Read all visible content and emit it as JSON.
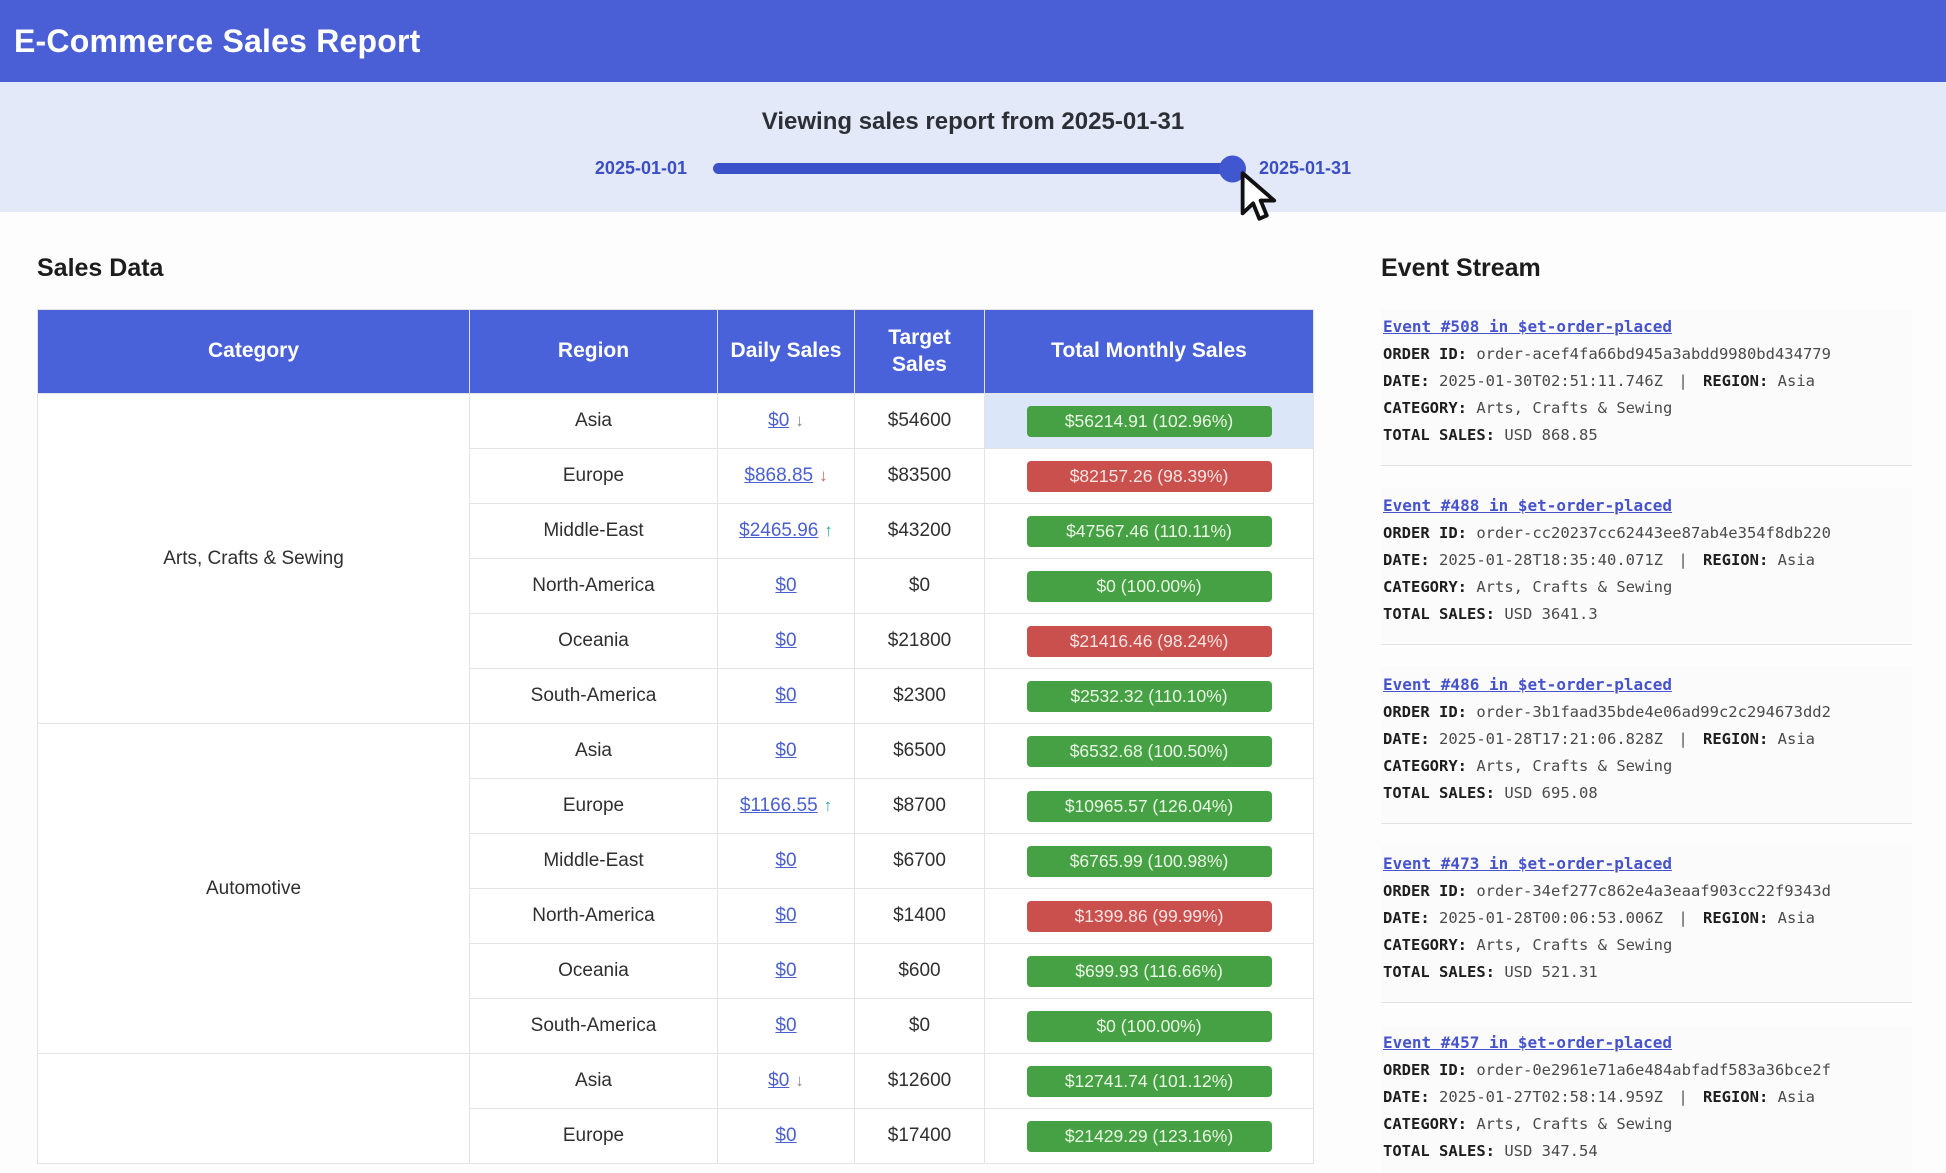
{
  "header": {
    "title": "E-Commerce Sales Report"
  },
  "slider": {
    "title": "Viewing sales report from 2025-01-31",
    "min_label": "2025-01-01",
    "max_label": "2025-01-31",
    "value": "2025-01-31"
  },
  "sales": {
    "title": "Sales Data",
    "columns": [
      "Category",
      "Region",
      "Daily Sales",
      "Target Sales",
      "Total Monthly Sales"
    ],
    "groups": [
      {
        "label": "Arts, Crafts & Sewing",
        "span": 6
      },
      {
        "label": "Automotive",
        "span": 6
      },
      {
        "label": "",
        "span": 2
      }
    ],
    "rows": [
      {
        "region": "Asia",
        "daily": "$0",
        "arrow": "down",
        "arrow_color": "gray",
        "target": "$54600",
        "total": "$56214.91 (102.96%)",
        "status": "green",
        "highlight": true
      },
      {
        "region": "Europe",
        "daily": "$868.85",
        "arrow": "down",
        "arrow_color": "red",
        "target": "$83500",
        "total": "$82157.26 (98.39%)",
        "status": "red"
      },
      {
        "region": "Middle-East",
        "daily": "$2465.96",
        "arrow": "up",
        "arrow_color": "teal",
        "target": "$43200",
        "total": "$47567.46 (110.11%)",
        "status": "green"
      },
      {
        "region": "North-America",
        "daily": "$0",
        "target": "$0",
        "total": "$0 (100.00%)",
        "status": "green"
      },
      {
        "region": "Oceania",
        "daily": "$0",
        "target": "$21800",
        "total": "$21416.46 (98.24%)",
        "status": "red"
      },
      {
        "region": "South-America",
        "daily": "$0",
        "target": "$2300",
        "total": "$2532.32 (110.10%)",
        "status": "green"
      },
      {
        "region": "Asia",
        "daily": "$0",
        "target": "$6500",
        "total": "$6532.68 (100.50%)",
        "status": "green"
      },
      {
        "region": "Europe",
        "daily": "$1166.55",
        "arrow": "up",
        "arrow_color": "teal",
        "target": "$8700",
        "total": "$10965.57 (126.04%)",
        "status": "green"
      },
      {
        "region": "Middle-East",
        "daily": "$0",
        "target": "$6700",
        "total": "$6765.99 (100.98%)",
        "status": "green"
      },
      {
        "region": "North-America",
        "daily": "$0",
        "target": "$1400",
        "total": "$1399.86 (99.99%)",
        "status": "red"
      },
      {
        "region": "Oceania",
        "daily": "$0",
        "target": "$600",
        "total": "$699.93 (116.66%)",
        "status": "green"
      },
      {
        "region": "South-America",
        "daily": "$0",
        "target": "$0",
        "total": "$0 (100.00%)",
        "status": "green"
      },
      {
        "region": "Asia",
        "daily": "$0",
        "arrow": "down",
        "arrow_color": "gray",
        "target": "$12600",
        "total": "$12741.74 (101.12%)",
        "status": "green"
      },
      {
        "region": "Europe",
        "daily": "$0",
        "target": "$17400",
        "total": "$21429.29 (123.16%)",
        "status": "green"
      }
    ]
  },
  "events": {
    "title": "Event Stream",
    "labels": {
      "order_id": "ORDER ID:",
      "date": "DATE:",
      "region": "REGION:",
      "category": "CATEGORY:",
      "total_sales": "TOTAL SALES:",
      "separator": "|"
    },
    "items": [
      {
        "link": "Event #508 in $et-order-placed",
        "order_id": "order-acef4fa66bd945a3abdd9980bd434779",
        "date": "2025-01-30T02:51:11.746Z",
        "region": "Asia",
        "category": "Arts, Crafts & Sewing",
        "total": "USD 868.85"
      },
      {
        "link": "Event #488 in $et-order-placed",
        "order_id": "order-cc20237cc62443ee87ab4e354f8db220",
        "date": "2025-01-28T18:35:40.071Z",
        "region": "Asia",
        "category": "Arts, Crafts & Sewing",
        "total": "USD 3641.3"
      },
      {
        "link": "Event #486 in $et-order-placed",
        "order_id": "order-3b1faad35bde4e06ad99c2c294673dd2",
        "date": "2025-01-28T17:21:06.828Z",
        "region": "Asia",
        "category": "Arts, Crafts & Sewing",
        "total": "USD 695.08"
      },
      {
        "link": "Event #473 in $et-order-placed",
        "order_id": "order-34ef277c862e4a3eaaf903cc22f9343d",
        "date": "2025-01-28T00:06:53.006Z",
        "region": "Asia",
        "category": "Arts, Crafts & Sewing",
        "total": "USD 521.31"
      },
      {
        "link": "Event #457 in $et-order-placed",
        "order_id": "order-0e2961e71a6e484abfadf583a36bce2f",
        "date": "2025-01-27T02:58:14.959Z",
        "region": "Asia",
        "category": "Arts, Crafts & Sewing",
        "total": "USD 347.54"
      }
    ]
  },
  "colors": {
    "header_bg": "#4a5fd6",
    "table_header_bg": "#4a62d9",
    "slider_band_bg": "#e3e9f8",
    "slider_track": "#3b51c9",
    "green_badge": "#46a145",
    "red_badge": "#c9504c",
    "link_blue": "#4a5fd0",
    "highlight_cell": "#dbe7f9"
  }
}
